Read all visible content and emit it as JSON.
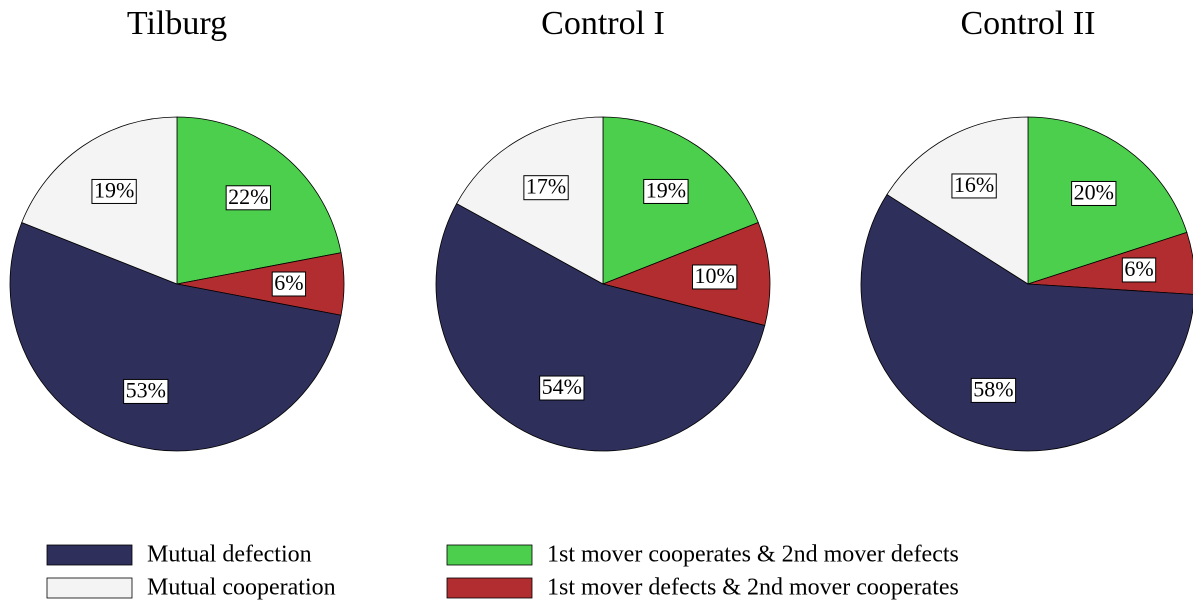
{
  "chart_data": [
    {
      "type": "pie",
      "title": "Tilburg",
      "categories": [
        "1st mover cooperates & 2nd mover defects",
        "1st mover defects & 2nd mover cooperates",
        "Mutual defection",
        "Mutual cooperation"
      ],
      "values": [
        22,
        6,
        53,
        19
      ],
      "value_labels": [
        "22%",
        "6%",
        "53%",
        "19%"
      ],
      "colors": [
        "#4ccf4c",
        "#b22d2f",
        "#2f2f5c",
        "#f4f4f4"
      ]
    },
    {
      "type": "pie",
      "title": "Control I",
      "categories": [
        "1st mover cooperates & 2nd mover defects",
        "1st mover defects & 2nd mover cooperates",
        "Mutual defection",
        "Mutual cooperation"
      ],
      "values": [
        19,
        10,
        54,
        17
      ],
      "value_labels": [
        "19%",
        "10%",
        "54%",
        "17%"
      ],
      "colors": [
        "#4ccf4c",
        "#b22d2f",
        "#2f2f5c",
        "#f4f4f4"
      ]
    },
    {
      "type": "pie",
      "title": "Control II",
      "categories": [
        "1st mover cooperates & 2nd mover defects",
        "1st mover defects & 2nd mover cooperates",
        "Mutual defection",
        "Mutual cooperation"
      ],
      "values": [
        20,
        6,
        58,
        16
      ],
      "value_labels": [
        "20%",
        "6%",
        "58%",
        "16%"
      ],
      "colors": [
        "#4ccf4c",
        "#b22d2f",
        "#2f2f5c",
        "#f4f4f4"
      ]
    }
  ]
}
